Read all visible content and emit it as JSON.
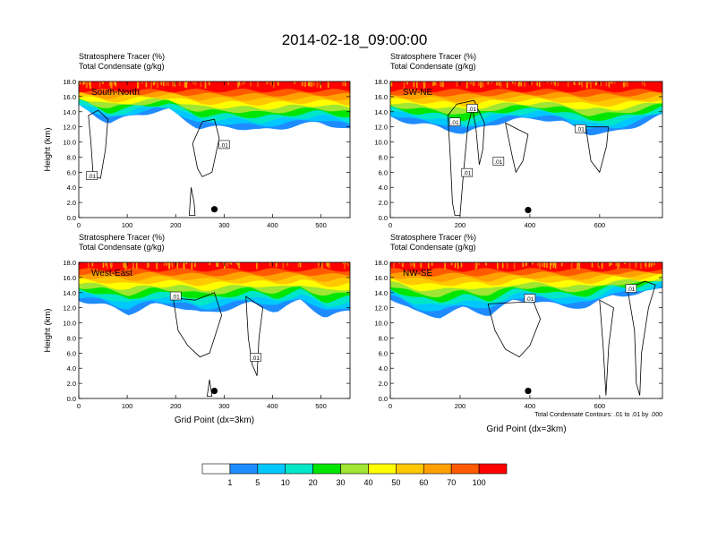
{
  "title": "2014-02-18_09:00:00",
  "colors": {
    "levels": [
      "#ffffff",
      "#1e8cff",
      "#00c8ff",
      "#00e6c8",
      "#00e600",
      "#a0e632",
      "#ffff00",
      "#ffc800",
      "#ffa000",
      "#ff5a00",
      "#ff0000"
    ],
    "contour": "#000000"
  },
  "chart_data": [
    {
      "type": "heatmap",
      "panel_label": "South-North",
      "field_labels": [
        "Stratosphere Tracer   (%)",
        "Total Condensate   (g/kg)"
      ],
      "ylabel": "Height (km)",
      "xlabel": "",
      "x_ticks": [
        0,
        100,
        200,
        300,
        400,
        500
      ],
      "y_ticks": [
        "0.0",
        "2.0",
        "4.0",
        "6.0",
        "8.0",
        "10.0",
        "12.0",
        "14.0",
        "16.0",
        "18.0"
      ],
      "xlim": [
        0,
        560
      ],
      "ylim": [
        0,
        18
      ],
      "marker": {
        "x": 280,
        "y": 1.1
      },
      "contour_labels": [
        {
          "text": ".01",
          "x": 27,
          "y": 5.5
        },
        {
          "text": ".01",
          "x": 300,
          "y": 9.6
        }
      ],
      "tracer_field": {
        "top_red_km": 16.8,
        "edge_1pct_km": [
          14.8,
          12.5,
          13.7,
          14.2,
          11.8,
          12.0,
          11.5,
          12.0,
          12.6,
          11.6
        ]
      }
    },
    {
      "type": "heatmap",
      "panel_label": "SW-NE",
      "field_labels": [
        "Stratosphere Tracer   (%)",
        "Total Condensate   (g/kg)"
      ],
      "ylabel": "",
      "xlabel": "",
      "x_ticks": [
        0,
        200,
        400,
        600
      ],
      "y_ticks": [
        "0.0",
        "2.0",
        "4.0",
        "6.0",
        "8.0",
        "10.0",
        "12.0",
        "14.0",
        "16.0",
        "18.0"
      ],
      "xlim": [
        0,
        780
      ],
      "ylim": [
        0,
        18
      ],
      "marker": {
        "x": 395,
        "y": 1.0
      },
      "contour_labels": [
        {
          "text": ".01",
          "x": 185,
          "y": 12.6
        },
        {
          "text": ".01",
          "x": 235,
          "y": 14.4
        },
        {
          "text": ".01",
          "x": 310,
          "y": 7.4
        },
        {
          "text": ".01",
          "x": 220,
          "y": 5.9
        },
        {
          "text": ".01",
          "x": 545,
          "y": 11.7
        }
      ],
      "tracer_field": {
        "top_red_km": 16.8,
        "edge_1pct_km": [
          13.3,
          12.4,
          12.0,
          11.0,
          12.3,
          12.9,
          13.1,
          12.6,
          11.1,
          11.2,
          12.2,
          13.5
        ]
      }
    },
    {
      "type": "heatmap",
      "panel_label": "West-East",
      "field_labels": [
        "Stratosphere Tracer   (%)",
        "Total Condensate   (g/kg)"
      ],
      "ylabel": "Height (km)",
      "xlabel": "Grid Point (dx=3km)",
      "x_ticks": [
        0,
        100,
        200,
        300,
        400,
        500
      ],
      "y_ticks": [
        "0.0",
        "2.0",
        "4.0",
        "6.0",
        "8.0",
        "10.0",
        "12.0",
        "14.0",
        "16.0",
        "18.0"
      ],
      "xlim": [
        0,
        560
      ],
      "ylim": [
        0,
        18
      ],
      "marker": {
        "x": 280,
        "y": 1.0
      },
      "contour_labels": [
        {
          "text": ".01",
          "x": 200,
          "y": 13.5
        },
        {
          "text": ".01",
          "x": 365,
          "y": 5.4
        }
      ],
      "tracer_field": {
        "top_red_km": 17.0,
        "edge_1pct_km": [
          13.0,
          12.4,
          11.2,
          12.4,
          12.2,
          11.2,
          11.8,
          12.6,
          11.5,
          13.0,
          10.7,
          11.6
        ]
      }
    },
    {
      "type": "heatmap",
      "panel_label": "NW-SE",
      "field_labels": [
        "Stratosphere Tracer   (%)",
        "Total Condensate   (g/kg)"
      ],
      "ylabel": "",
      "xlabel": "Grid Point (dx=3km)",
      "x_ticks": [
        0,
        200,
        400,
        600
      ],
      "y_ticks": [
        "0.0",
        "2.0",
        "4.0",
        "6.0",
        "8.0",
        "10.0",
        "12.0",
        "14.0",
        "16.0",
        "18.0"
      ],
      "xlim": [
        0,
        780
      ],
      "ylim": [
        0,
        18
      ],
      "marker": {
        "x": 395,
        "y": 1.0
      },
      "contour_labels": [
        {
          "text": ".01",
          "x": 400,
          "y": 13.2
        },
        {
          "text": ".01",
          "x": 690,
          "y": 14.5
        }
      ],
      "tracer_field": {
        "top_red_km": 17.0,
        "edge_1pct_km": [
          13.3,
          11.4,
          10.8,
          12.0,
          11.0,
          13.0,
          12.8,
          12.2,
          12.0,
          13.8,
          13.6,
          14.8
        ]
      },
      "footnote": "Total Condensate Contours: .01 to .01 by .000"
    }
  ],
  "colorbar": {
    "labels": [
      "1",
      "5",
      "10",
      "20",
      "30",
      "40",
      "50",
      "60",
      "70",
      "100"
    ]
  }
}
